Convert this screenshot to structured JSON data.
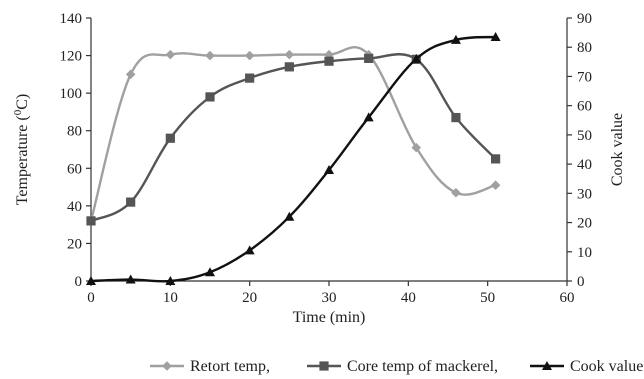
{
  "chart_data": {
    "type": "line",
    "title": "",
    "xlabel": "Time (min)",
    "ylabel": {
      "base": "Temperature (",
      "sup": "0",
      "tail": "C)"
    },
    "y2label": "Cook value",
    "xlim": [
      0,
      60
    ],
    "ylim": [
      0,
      140
    ],
    "y2lim": [
      0,
      90
    ],
    "x_ticks": [
      0,
      10,
      20,
      30,
      40,
      50,
      60
    ],
    "y_ticks": [
      0,
      20,
      40,
      60,
      80,
      100,
      120,
      140
    ],
    "y2_ticks": [
      0,
      10,
      20,
      30,
      40,
      50,
      60,
      70,
      80,
      90
    ],
    "grid": false,
    "legend_position": "bottom",
    "series": [
      {
        "name": "Retort temp,",
        "axis": "left",
        "color": "#a0a0a0",
        "marker": "diamond",
        "x": [
          0,
          5,
          10,
          15,
          20,
          25,
          30,
          35,
          41,
          46,
          51
        ],
        "y": [
          32,
          110,
          120.5,
          120,
          120,
          120.5,
          120.5,
          120.5,
          71,
          47,
          51
        ]
      },
      {
        "name": "Core temp of mackerel,",
        "axis": "left",
        "color": "#555555",
        "marker": "square",
        "x": [
          0,
          5,
          10,
          15,
          20,
          25,
          30,
          35,
          41,
          46,
          51
        ],
        "y": [
          32,
          42,
          76,
          98,
          108,
          114,
          117,
          118.5,
          118,
          87,
          65
        ]
      },
      {
        "name": "Cook value",
        "axis": "right",
        "color": "#111111",
        "marker": "triangle",
        "x": [
          0,
          5,
          10,
          15,
          20,
          25,
          30,
          35,
          41,
          46,
          51
        ],
        "y": [
          0,
          0.5,
          0,
          3,
          10.5,
          22,
          38,
          56,
          76,
          82.5,
          83.5
        ]
      }
    ]
  }
}
